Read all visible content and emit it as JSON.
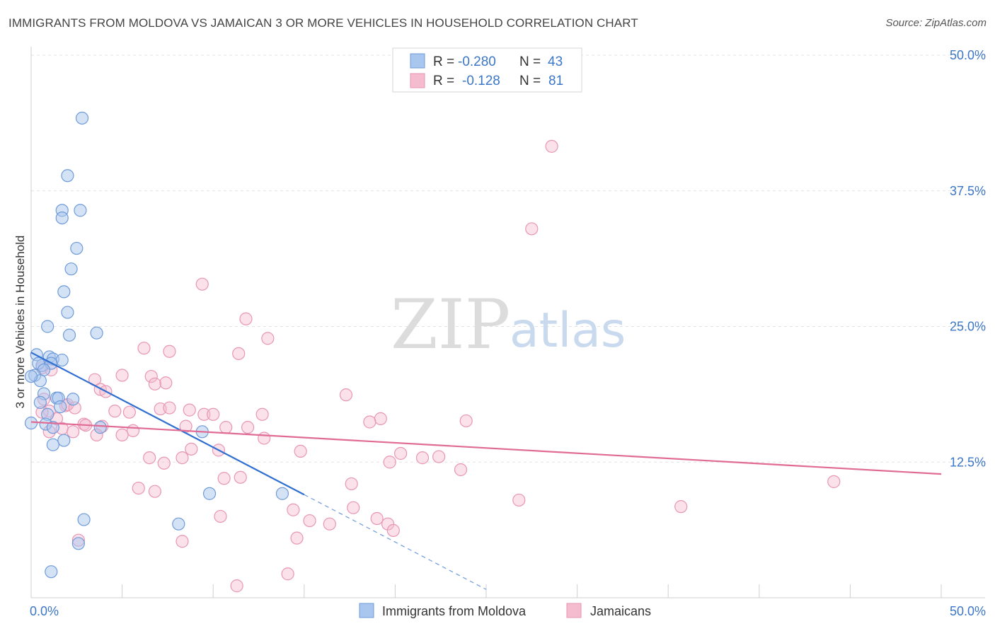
{
  "title": "IMMIGRANTS FROM MOLDOVA VS JAMAICAN 3 OR MORE VEHICLES IN HOUSEHOLD CORRELATION CHART",
  "source": "Source: ZipAtlas.com",
  "watermark": {
    "zip": "ZIP",
    "atlas": "atlas"
  },
  "colors": {
    "blue_fill": "#a9c6ee",
    "blue_stroke": "#6f9bd8",
    "blue_line": "#2f6fd1",
    "pink_fill": "#f5bcd0",
    "pink_stroke": "#e896b4",
    "pink_line": "#e06b95",
    "tick": "#3b76c7",
    "grid": "#e3e3e3"
  },
  "legend": {
    "series": [
      {
        "r_label": "R =",
        "r_value": "-0.280",
        "n_label": "N =",
        "n_value": "43"
      },
      {
        "r_label": "R =",
        "r_value": "-0.128",
        "n_label": "N =",
        "n_value": "81"
      }
    ]
  },
  "bottom_legend": [
    "Immigrants from Moldova",
    "Jamaicans"
  ],
  "chart_data": {
    "type": "scatter",
    "title": "IMMIGRANTS FROM MOLDOVA VS JAMAICAN 3 OR MORE VEHICLES IN HOUSEHOLD CORRELATION CHART",
    "xlabel": "",
    "ylabel": "3 or more Vehicles in Household",
    "xlim": [
      0,
      50
    ],
    "ylim": [
      0,
      50
    ],
    "x_tick_labels": [
      "0.0%",
      "50.0%"
    ],
    "y_ticks": [
      12.5,
      25.0,
      37.5,
      50.0
    ],
    "y_tick_labels": [
      "12.5%",
      "25.0%",
      "37.5%",
      "50.0%"
    ],
    "grid": true,
    "legend_position": "top-center",
    "series": [
      {
        "name": "Immigrants from Moldova",
        "R": -0.28,
        "N": 43,
        "trend": {
          "x0": 0,
          "y0": 22.6,
          "x1": 15,
          "y1": 9.5,
          "dashed_to_x": 25
        },
        "points": [
          [
            2.8,
            44.2
          ],
          [
            2.0,
            38.9
          ],
          [
            2.7,
            35.7
          ],
          [
            1.7,
            35.7
          ],
          [
            1.7,
            35.0
          ],
          [
            2.5,
            32.2
          ],
          [
            2.2,
            30.3
          ],
          [
            1.8,
            28.2
          ],
          [
            2.0,
            26.3
          ],
          [
            0.9,
            25.0
          ],
          [
            2.1,
            24.2
          ],
          [
            3.6,
            24.4
          ],
          [
            0.3,
            22.4
          ],
          [
            1.0,
            22.2
          ],
          [
            1.2,
            22.0
          ],
          [
            1.7,
            21.9
          ],
          [
            0.6,
            21.4
          ],
          [
            0.4,
            21.6
          ],
          [
            1.1,
            21.6
          ],
          [
            0.7,
            21.0
          ],
          [
            0.2,
            20.5
          ],
          [
            0.5,
            20.0
          ],
          [
            0.0,
            20.4
          ],
          [
            0.7,
            18.8
          ],
          [
            1.4,
            18.4
          ],
          [
            1.5,
            18.4
          ],
          [
            2.3,
            18.3
          ],
          [
            0.5,
            18.0
          ],
          [
            1.6,
            17.6
          ],
          [
            0.9,
            16.9
          ],
          [
            0.0,
            16.1
          ],
          [
            0.8,
            16.0
          ],
          [
            1.2,
            15.7
          ],
          [
            3.8,
            15.7
          ],
          [
            9.4,
            15.3
          ],
          [
            1.8,
            14.5
          ],
          [
            1.2,
            14.1
          ],
          [
            9.8,
            9.6
          ],
          [
            13.8,
            9.6
          ],
          [
            2.9,
            7.2
          ],
          [
            8.1,
            6.8
          ],
          [
            2.6,
            5.0
          ],
          [
            1.1,
            2.4
          ]
        ]
      },
      {
        "name": "Jamaicans",
        "R": -0.128,
        "N": 81,
        "trend": {
          "x0": 0,
          "y0": 16.2,
          "x1": 50,
          "y1": 11.4
        },
        "points": [
          [
            28.6,
            41.6
          ],
          [
            27.5,
            34.0
          ],
          [
            9.4,
            28.9
          ],
          [
            11.8,
            25.7
          ],
          [
            13.0,
            23.9
          ],
          [
            6.2,
            23.0
          ],
          [
            7.6,
            22.7
          ],
          [
            11.4,
            22.5
          ],
          [
            0.6,
            21.2
          ],
          [
            1.1,
            21.0
          ],
          [
            5.0,
            20.5
          ],
          [
            6.6,
            20.4
          ],
          [
            3.5,
            20.1
          ],
          [
            7.4,
            19.8
          ],
          [
            6.8,
            19.7
          ],
          [
            3.8,
            19.2
          ],
          [
            4.1,
            19.0
          ],
          [
            17.3,
            18.7
          ],
          [
            0.7,
            18.3
          ],
          [
            1.9,
            17.7
          ],
          [
            2.0,
            17.8
          ],
          [
            2.4,
            17.5
          ],
          [
            7.1,
            17.4
          ],
          [
            7.6,
            17.5
          ],
          [
            8.7,
            17.3
          ],
          [
            1.0,
            17.2
          ],
          [
            0.6,
            17.1
          ],
          [
            4.6,
            17.2
          ],
          [
            5.4,
            17.1
          ],
          [
            9.5,
            16.9
          ],
          [
            10.0,
            16.9
          ],
          [
            12.7,
            16.9
          ],
          [
            1.4,
            16.5
          ],
          [
            19.2,
            16.5
          ],
          [
            23.9,
            16.3
          ],
          [
            18.6,
            16.2
          ],
          [
            2.9,
            16.0
          ],
          [
            3.0,
            15.9
          ],
          [
            3.9,
            15.8
          ],
          [
            8.5,
            15.8
          ],
          [
            10.7,
            15.7
          ],
          [
            11.9,
            15.7
          ],
          [
            1.7,
            15.6
          ],
          [
            5.6,
            15.4
          ],
          [
            2.3,
            15.3
          ],
          [
            1.0,
            15.3
          ],
          [
            3.6,
            15.0
          ],
          [
            5.0,
            15.0
          ],
          [
            12.8,
            14.7
          ],
          [
            8.8,
            13.7
          ],
          [
            10.3,
            13.6
          ],
          [
            14.8,
            13.5
          ],
          [
            20.3,
            13.3
          ],
          [
            22.4,
            13.0
          ],
          [
            19.7,
            12.5
          ],
          [
            6.5,
            12.9
          ],
          [
            8.3,
            12.9
          ],
          [
            7.3,
            12.4
          ],
          [
            21.5,
            12.9
          ],
          [
            23.6,
            11.8
          ],
          [
            11.5,
            11.1
          ],
          [
            10.6,
            11.0
          ],
          [
            17.6,
            10.5
          ],
          [
            44.1,
            10.7
          ],
          [
            5.9,
            10.1
          ],
          [
            6.8,
            9.8
          ],
          [
            26.8,
            9.0
          ],
          [
            35.7,
            8.4
          ],
          [
            17.7,
            8.3
          ],
          [
            14.4,
            8.1
          ],
          [
            10.4,
            7.5
          ],
          [
            19.0,
            7.3
          ],
          [
            15.3,
            7.1
          ],
          [
            16.4,
            6.8
          ],
          [
            19.6,
            6.8
          ],
          [
            19.9,
            6.2
          ],
          [
            2.6,
            5.3
          ],
          [
            8.3,
            5.2
          ],
          [
            14.6,
            5.5
          ],
          [
            14.1,
            2.2
          ],
          [
            11.3,
            1.1
          ]
        ]
      }
    ]
  }
}
